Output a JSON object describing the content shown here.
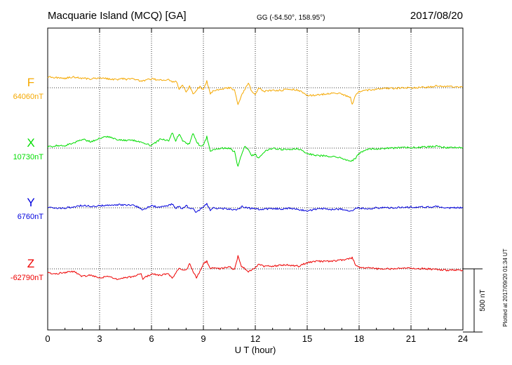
{
  "chart_data": {
    "type": "line",
    "title": "Macquarie Island (MCQ)  [GA]",
    "coords": "GG (-54.50°, 158.95°)",
    "date": "2017/08/20",
    "xlabel": "U T (hour)",
    "xlim": [
      0,
      24
    ],
    "xticks": [
      "0",
      "3",
      "6",
      "9",
      "12",
      "15",
      "18",
      "21",
      "24"
    ],
    "xtick_values": [
      0,
      3,
      6,
      9,
      12,
      15,
      18,
      21,
      24
    ],
    "scale_label": "500 nT",
    "scale_nT": 500,
    "plotted_note": "Plotted at 2017/09/20 01:34  UT",
    "grid": true,
    "series": [
      {
        "name": "F",
        "baseline_label": "64060nT",
        "baseline_nT": 64060,
        "color": "#f5a800",
        "points": [
          [
            0,
            85
          ],
          [
            0.5,
            80
          ],
          [
            1,
            75
          ],
          [
            1.5,
            85
          ],
          [
            2,
            75
          ],
          [
            2.5,
            70
          ],
          [
            3,
            80
          ],
          [
            3.5,
            70
          ],
          [
            4,
            65
          ],
          [
            4.3,
            75
          ],
          [
            4.5,
            65
          ],
          [
            5,
            70
          ],
          [
            5.4,
            50
          ],
          [
            6,
            70
          ],
          [
            6.5,
            60
          ],
          [
            7,
            65
          ],
          [
            7.2,
            40
          ],
          [
            7.4,
            60
          ],
          [
            7.6,
            -10
          ],
          [
            7.8,
            20
          ],
          [
            8,
            -30
          ],
          [
            8.2,
            10
          ],
          [
            8.4,
            -50
          ],
          [
            8.6,
            -20
          ],
          [
            8.8,
            10
          ],
          [
            9,
            -20
          ],
          [
            9.2,
            50
          ],
          [
            9.4,
            -50
          ],
          [
            9.6,
            -20
          ],
          [
            10,
            -10
          ],
          [
            10.5,
            0
          ],
          [
            10.8,
            -15
          ],
          [
            11.0,
            -140
          ],
          [
            11.2,
            -60
          ],
          [
            11.4,
            -10
          ],
          [
            11.6,
            40
          ],
          [
            11.8,
            -30
          ],
          [
            12.0,
            -60
          ],
          [
            12.2,
            0
          ],
          [
            12.5,
            -30
          ],
          [
            13,
            -20
          ],
          [
            13.5,
            -20
          ],
          [
            14,
            -10
          ],
          [
            14.5,
            -20
          ],
          [
            15,
            -60
          ],
          [
            15.5,
            -60
          ],
          [
            16,
            -50
          ],
          [
            16.5,
            -40
          ],
          [
            17,
            -50
          ],
          [
            17.5,
            -80
          ],
          [
            17.6,
            -130
          ],
          [
            17.8,
            -60
          ],
          [
            18,
            -30
          ],
          [
            18.5,
            -20
          ],
          [
            19,
            -10
          ],
          [
            19.5,
            -5
          ],
          [
            20,
            -5
          ],
          [
            21,
            0
          ],
          [
            22,
            5
          ],
          [
            22.5,
            15
          ],
          [
            23,
            10
          ],
          [
            24,
            5
          ]
        ]
      },
      {
        "name": "X",
        "baseline_label": "10730nT",
        "baseline_nT": 10730,
        "color": "#00dd00",
        "points": [
          [
            0,
            10
          ],
          [
            0.5,
            20
          ],
          [
            1,
            20
          ],
          [
            1.5,
            40
          ],
          [
            2,
            70
          ],
          [
            2.5,
            50
          ],
          [
            3,
            80
          ],
          [
            3.5,
            90
          ],
          [
            4,
            70
          ],
          [
            4.5,
            60
          ],
          [
            5,
            60
          ],
          [
            5.5,
            40
          ],
          [
            6,
            20
          ],
          [
            6.5,
            70
          ],
          [
            7,
            60
          ],
          [
            7.2,
            120
          ],
          [
            7.4,
            60
          ],
          [
            7.6,
            110
          ],
          [
            7.8,
            60
          ],
          [
            8,
            40
          ],
          [
            8.2,
            30
          ],
          [
            8.4,
            120
          ],
          [
            8.6,
            50
          ],
          [
            8.8,
            20
          ],
          [
            9,
            20
          ],
          [
            9.2,
            90
          ],
          [
            9.4,
            -30
          ],
          [
            9.6,
            -10
          ],
          [
            10,
            0
          ],
          [
            10.5,
            0
          ],
          [
            10.8,
            -30
          ],
          [
            11.0,
            -150
          ],
          [
            11.2,
            -50
          ],
          [
            11.4,
            20
          ],
          [
            11.6,
            -10
          ],
          [
            11.8,
            -60
          ],
          [
            12,
            -50
          ],
          [
            12.2,
            -80
          ],
          [
            12.5,
            -30
          ],
          [
            13,
            0
          ],
          [
            13.5,
            -10
          ],
          [
            14,
            -10
          ],
          [
            14.5,
            -5
          ],
          [
            15,
            -40
          ],
          [
            15.5,
            -60
          ],
          [
            16,
            -60
          ],
          [
            16.5,
            -70
          ],
          [
            17,
            -80
          ],
          [
            17.5,
            -110
          ],
          [
            17.8,
            -80
          ],
          [
            18,
            -40
          ],
          [
            18.5,
            -10
          ],
          [
            19,
            -5
          ],
          [
            20,
            0
          ],
          [
            21,
            5
          ],
          [
            22,
            10
          ],
          [
            22.5,
            15
          ],
          [
            23,
            5
          ],
          [
            24,
            5
          ]
        ]
      },
      {
        "name": "Y",
        "baseline_label": "6760nT",
        "baseline_nT": 6760,
        "color": "#0000dd",
        "points": [
          [
            0,
            5
          ],
          [
            0.5,
            -5
          ],
          [
            1,
            0
          ],
          [
            1.5,
            5
          ],
          [
            2,
            20
          ],
          [
            2.5,
            10
          ],
          [
            3,
            15
          ],
          [
            3.5,
            20
          ],
          [
            4,
            25
          ],
          [
            4.5,
            20
          ],
          [
            5,
            20
          ],
          [
            5.5,
            -15
          ],
          [
            6,
            15
          ],
          [
            6.5,
            5
          ],
          [
            7,
            20
          ],
          [
            7.2,
            30
          ],
          [
            7.4,
            0
          ],
          [
            7.6,
            10
          ],
          [
            7.8,
            -10
          ],
          [
            8,
            20
          ],
          [
            8.2,
            -5
          ],
          [
            8.4,
            -10
          ],
          [
            8.6,
            -40
          ],
          [
            8.8,
            -10
          ],
          [
            9,
            5
          ],
          [
            9.2,
            30
          ],
          [
            9.4,
            -20
          ],
          [
            9.6,
            0
          ],
          [
            10,
            -5
          ],
          [
            10.5,
            -10
          ],
          [
            11,
            -15
          ],
          [
            11.2,
            10
          ],
          [
            11.5,
            0
          ],
          [
            12,
            -10
          ],
          [
            12.5,
            -10
          ],
          [
            13,
            -5
          ],
          [
            13.5,
            -10
          ],
          [
            14,
            -5
          ],
          [
            14.5,
            -15
          ],
          [
            15,
            -25
          ],
          [
            15.5,
            -10
          ],
          [
            16,
            -5
          ],
          [
            16.5,
            -15
          ],
          [
            17,
            -10
          ],
          [
            17.5,
            -30
          ],
          [
            17.8,
            -5
          ],
          [
            18,
            0
          ],
          [
            18.5,
            -10
          ],
          [
            19,
            0
          ],
          [
            20,
            0
          ],
          [
            21,
            5
          ],
          [
            22,
            5
          ],
          [
            22.5,
            10
          ],
          [
            23,
            0
          ],
          [
            24,
            0
          ]
        ]
      },
      {
        "name": "Z",
        "baseline_label": "-62790nT",
        "baseline_nT": -62790,
        "color": "#ee0000",
        "points": [
          [
            0,
            -30
          ],
          [
            0.5,
            -40
          ],
          [
            1,
            -30
          ],
          [
            1.5,
            -20
          ],
          [
            2,
            -60
          ],
          [
            2.5,
            -50
          ],
          [
            3,
            -70
          ],
          [
            3.5,
            -60
          ],
          [
            4,
            -80
          ],
          [
            4.5,
            -70
          ],
          [
            5,
            -60
          ],
          [
            5.4,
            -40
          ],
          [
            5.5,
            -80
          ],
          [
            6,
            -40
          ],
          [
            6.5,
            -50
          ],
          [
            7,
            -40
          ],
          [
            7.2,
            -80
          ],
          [
            7.4,
            -30
          ],
          [
            7.6,
            0
          ],
          [
            8,
            -10
          ],
          [
            8.2,
            40
          ],
          [
            8.4,
            -20
          ],
          [
            8.6,
            -70
          ],
          [
            8.8,
            -20
          ],
          [
            9,
            40
          ],
          [
            9.2,
            60
          ],
          [
            9.4,
            0
          ],
          [
            9.6,
            10
          ],
          [
            10,
            0
          ],
          [
            10.5,
            20
          ],
          [
            10.8,
            -10
          ],
          [
            11,
            100
          ],
          [
            11.2,
            20
          ],
          [
            11.4,
            0
          ],
          [
            11.6,
            -20
          ],
          [
            11.8,
            -10
          ],
          [
            12,
            10
          ],
          [
            12.2,
            40
          ],
          [
            12.5,
            20
          ],
          [
            13,
            20
          ],
          [
            13.5,
            30
          ],
          [
            14,
            30
          ],
          [
            14.5,
            20
          ],
          [
            15,
            50
          ],
          [
            15.5,
            60
          ],
          [
            16,
            60
          ],
          [
            16.5,
            60
          ],
          [
            17,
            70
          ],
          [
            17.5,
            80
          ],
          [
            17.6,
            90
          ],
          [
            17.8,
            30
          ],
          [
            18,
            10
          ],
          [
            18.5,
            10
          ],
          [
            19,
            0
          ],
          [
            20,
            0
          ],
          [
            21,
            5
          ],
          [
            22,
            0
          ],
          [
            22.5,
            -5
          ],
          [
            23,
            -10
          ],
          [
            24,
            -10
          ]
        ]
      }
    ]
  }
}
